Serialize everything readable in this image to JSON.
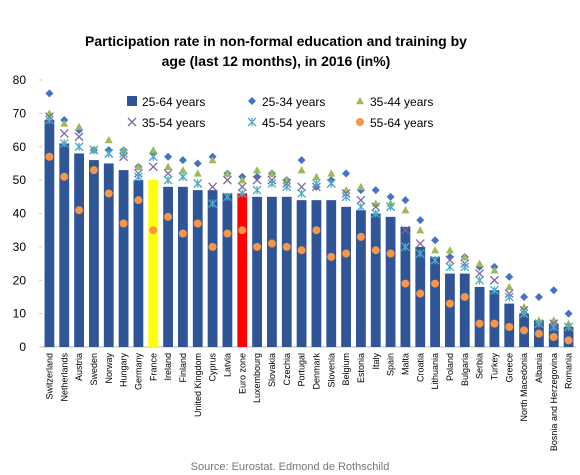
{
  "chart_data": {
    "type": "bar",
    "title": [
      "Participation rate in non-formal education and training by",
      "age (last 12 months), in 2016 (in%)"
    ],
    "source": "Source: Eurostat, Edmond de Rothschild",
    "categories": [
      "Switzerland",
      "Netherlands",
      "Austria",
      "Sweden",
      "Norway",
      "Hungary",
      "Germany",
      "France",
      "Ireland",
      "Finland",
      "United Kingdom",
      "Cyprus",
      "Latvia",
      "Euro zone",
      "Luxembourg",
      "Slovakia",
      "Czechia",
      "Portugal",
      "Denmark",
      "Slovenia",
      "Belgium",
      "Estonia",
      "Italy",
      "Spain",
      "Malta",
      "Croatia",
      "Lithuania",
      "Poland",
      "Bulgaria",
      "Serbia",
      "Turkey",
      "Greece",
      "North Macedonia",
      "Albania",
      "Bosnia and Herzegovina",
      "Romania"
    ],
    "highlight_colors": {
      "France": "#ffff00",
      "Euro zone": "#ff0000"
    },
    "series": [
      {
        "name": "25-64 years",
        "marker": "bar",
        "color": "#2f5597",
        "values": [
          68,
          61,
          58,
          56,
          55,
          53,
          50,
          50,
          48,
          48,
          47,
          47,
          46,
          46,
          45,
          45,
          45,
          44,
          44,
          44,
          42,
          41,
          40,
          39,
          36,
          30,
          27,
          22,
          22,
          18,
          17,
          13,
          10,
          8,
          7,
          6
        ]
      },
      {
        "name": "25-34 years",
        "marker": "diamond",
        "color": "#4472c4",
        "values": [
          76,
          68,
          65,
          59,
          59,
          59,
          54,
          58,
          57,
          56,
          55,
          57,
          52,
          51,
          51,
          52,
          50,
          56,
          48,
          50,
          52,
          47,
          47,
          45,
          44,
          38,
          32,
          27,
          27,
          24,
          24,
          21,
          15,
          15,
          17,
          10
        ]
      },
      {
        "name": "35-44 years",
        "marker": "triangle",
        "color": "#9bbb59",
        "values": [
          70,
          67,
          66,
          59,
          62,
          59,
          54,
          59,
          54,
          53,
          52,
          56,
          52,
          50,
          53,
          52,
          50,
          53,
          51,
          52,
          47,
          48,
          43,
          43,
          41,
          35,
          29,
          29,
          27,
          25,
          23,
          18,
          12,
          8,
          8,
          7
        ]
      },
      {
        "name": "35-54 years",
        "marker": "x",
        "color": "#8064a2",
        "values": [
          69,
          64,
          63,
          59,
          58,
          57,
          52,
          54,
          52,
          51,
          49,
          48,
          50,
          48,
          50,
          50,
          49,
          48,
          48,
          49,
          46,
          44,
          42,
          42,
          35,
          31,
          26,
          26,
          25,
          22,
          20,
          16,
          11,
          7,
          7,
          6
        ]
      },
      {
        "name": "45-54 years",
        "marker": "star",
        "color": "#4bacc6",
        "values": [
          68,
          61,
          60,
          59,
          58,
          58,
          51,
          57,
          50,
          51,
          49,
          43,
          45,
          46,
          47,
          49,
          48,
          46,
          49,
          49,
          45,
          42,
          40,
          42,
          30,
          28,
          26,
          24,
          24,
          20,
          17,
          15,
          10,
          7,
          6,
          6
        ]
      },
      {
        "name": "55-64 years",
        "marker": "circle",
        "color": "#f79646",
        "values": [
          57,
          51,
          41,
          53,
          46,
          37,
          44,
          35,
          39,
          34,
          37,
          30,
          34,
          35,
          30,
          31,
          30,
          29,
          35,
          27,
          28,
          33,
          29,
          28,
          19,
          16,
          19,
          13,
          15,
          7,
          7,
          6,
          5,
          4,
          3,
          2
        ]
      }
    ],
    "ylim": [
      0,
      80
    ],
    "yticks": [
      0,
      10,
      20,
      30,
      40,
      50,
      60,
      70,
      80
    ],
    "grid": false,
    "legend": "top-right"
  }
}
